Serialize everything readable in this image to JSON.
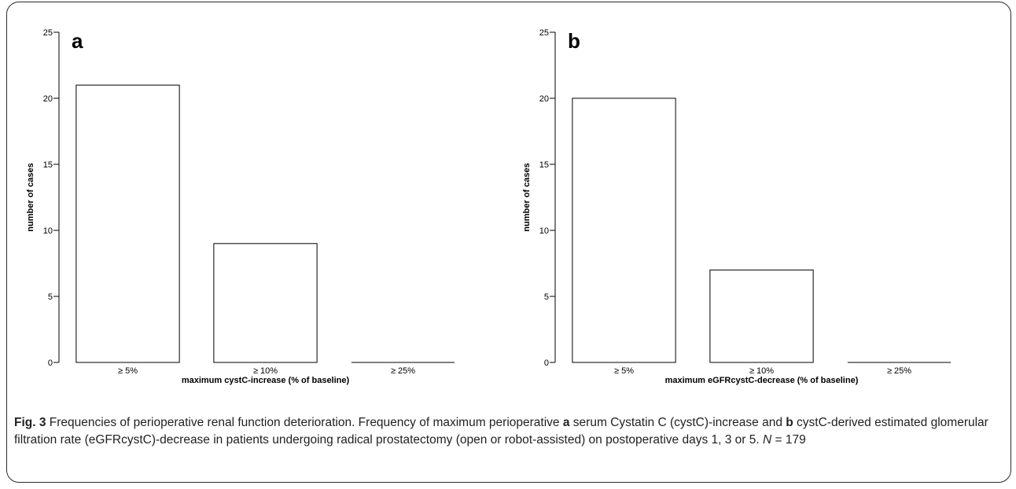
{
  "chart_data": [
    {
      "type": "bar",
      "panel": "a",
      "categories": [
        "≥ 5%",
        "≥ 10%",
        "≥ 25%"
      ],
      "values": [
        21,
        9,
        0
      ],
      "xlabel": "maximum cystC-increase (% of baseline)",
      "ylabel": "number of cases",
      "ylim": [
        0,
        25
      ],
      "yticks": [
        0,
        5,
        10,
        15,
        20,
        25
      ],
      "grid": false
    },
    {
      "type": "bar",
      "panel": "b",
      "categories": [
        "≥ 5%",
        "≥ 10%",
        "≥ 25%"
      ],
      "values": [
        20,
        7,
        0
      ],
      "xlabel": "maximum eGFRcystC-decrease (% of baseline)",
      "ylabel": "number of cases",
      "ylim": [
        0,
        25
      ],
      "yticks": [
        0,
        5,
        10,
        15,
        20,
        25
      ],
      "grid": false
    }
  ],
  "caption": {
    "fig_label": "Fig. 3",
    "title": " Frequencies of perioperative renal function deterioration. Frequency of maximum perioperative ",
    "ref_a": "a",
    "text_a": " serum Cystatin C (cystC)-increase and ",
    "ref_b": "b",
    "text_b": " cystC-derived estimated glomerular filtration rate (eGFRcystC)-decrease in patients undergoing radical prostatectomy (open or robot-assisted) on postoperative days 1, 3 or 5. ",
    "n_label": "N",
    "n_value": " = 179"
  }
}
